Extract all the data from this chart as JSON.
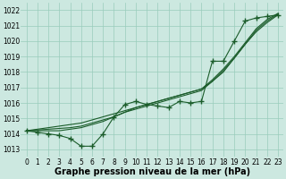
{
  "xlabel": "Graphe pression niveau de la mer (hPa)",
  "x": [
    0,
    1,
    2,
    3,
    4,
    5,
    6,
    7,
    8,
    9,
    10,
    11,
    12,
    13,
    14,
    15,
    16,
    17,
    18,
    19,
    20,
    21,
    22,
    23
  ],
  "line_marked": [
    1014.2,
    1014.1,
    1014.0,
    1013.9,
    1013.7,
    1013.2,
    1013.2,
    1014.0,
    1015.1,
    1015.9,
    1016.1,
    1015.9,
    1015.8,
    1015.7,
    1016.1,
    1016.0,
    1016.1,
    1018.7,
    1018.7,
    1020.0,
    1021.3,
    1021.5,
    1021.6,
    1021.7
  ],
  "line_smooth1": [
    1014.2,
    1014.3,
    1014.4,
    1014.5,
    1014.6,
    1014.7,
    1014.9,
    1015.1,
    1015.3,
    1015.5,
    1015.7,
    1015.9,
    1016.1,
    1016.3,
    1016.5,
    1016.7,
    1016.9,
    1017.5,
    1018.2,
    1019.0,
    1019.9,
    1020.8,
    1021.4,
    1021.8
  ],
  "line_smooth2": [
    1014.2,
    1014.25,
    1014.3,
    1014.35,
    1014.4,
    1014.5,
    1014.7,
    1014.9,
    1015.1,
    1015.4,
    1015.6,
    1015.8,
    1016.0,
    1016.2,
    1016.4,
    1016.6,
    1016.8,
    1017.4,
    1018.1,
    1018.9,
    1019.8,
    1020.7,
    1021.3,
    1021.75
  ],
  "line_smooth3": [
    1014.2,
    1014.2,
    1014.2,
    1014.2,
    1014.3,
    1014.4,
    1014.6,
    1014.8,
    1015.1,
    1015.4,
    1015.7,
    1015.9,
    1016.1,
    1016.3,
    1016.5,
    1016.7,
    1016.9,
    1017.4,
    1018.0,
    1018.9,
    1019.8,
    1020.6,
    1021.2,
    1021.7
  ],
  "ylim": [
    1012.5,
    1022.5
  ],
  "yticks": [
    1013,
    1014,
    1015,
    1016,
    1017,
    1018,
    1019,
    1020,
    1021,
    1022
  ],
  "bg_color": "#cce8e0",
  "grid_color": "#99ccbb",
  "line_color": "#1a5c2a",
  "marker": "+",
  "markersize": 4,
  "markeredgewidth": 1.0,
  "linewidth": 0.8,
  "xlabel_fontsize": 7,
  "tick_fontsize": 5.5
}
